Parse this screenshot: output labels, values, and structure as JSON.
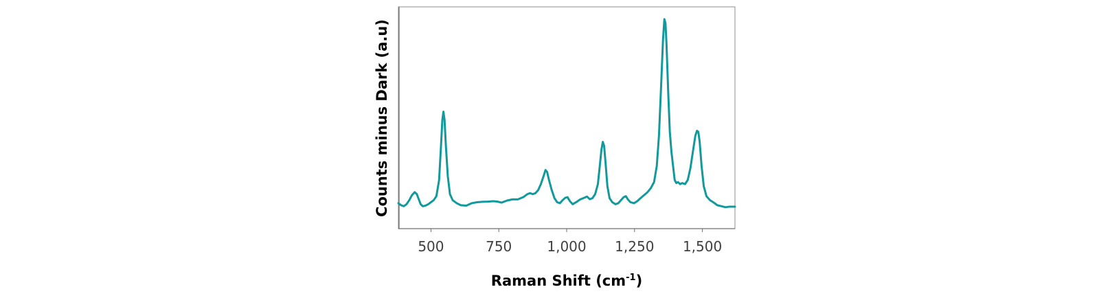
{
  "chart_data": {
    "type": "line",
    "xlabel": {
      "main": "Raman Shift (cm",
      "sup": "-1",
      "close": ")"
    },
    "ylabel": "Counts minus Dark (a.u)",
    "xlim": [
      380,
      1620
    ],
    "ylim": [
      0,
      100
    ],
    "x_ticks": [
      500,
      750,
      1000,
      1250,
      1500
    ],
    "x_tick_labels": [
      "500",
      "750",
      "1,000",
      "1,250",
      "1,500"
    ],
    "y_ticks_visible": false,
    "grid": false,
    "legend": "none",
    "series": [
      {
        "color": "#12999b",
        "points": [
          [
            380,
            6.5
          ],
          [
            390,
            5.5
          ],
          [
            400,
            5
          ],
          [
            410,
            6
          ],
          [
            420,
            8
          ],
          [
            430,
            10.5
          ],
          [
            440,
            12
          ],
          [
            448,
            11
          ],
          [
            455,
            8.5
          ],
          [
            462,
            6
          ],
          [
            470,
            5
          ],
          [
            480,
            5.3
          ],
          [
            490,
            6
          ],
          [
            500,
            7
          ],
          [
            510,
            8
          ],
          [
            520,
            10
          ],
          [
            530,
            18
          ],
          [
            537,
            35
          ],
          [
            542,
            48
          ],
          [
            546,
            52
          ],
          [
            550,
            48
          ],
          [
            555,
            35
          ],
          [
            562,
            20
          ],
          [
            570,
            11
          ],
          [
            580,
            8
          ],
          [
            595,
            6.5
          ],
          [
            610,
            5.5
          ],
          [
            630,
            5.3
          ],
          [
            650,
            6.5
          ],
          [
            670,
            7
          ],
          [
            690,
            7.2
          ],
          [
            710,
            7.3
          ],
          [
            730,
            7.5
          ],
          [
            745,
            7.3
          ],
          [
            760,
            6.8
          ],
          [
            780,
            7.8
          ],
          [
            800,
            8.4
          ],
          [
            820,
            8.4
          ],
          [
            840,
            9.5
          ],
          [
            855,
            11
          ],
          [
            865,
            11.5
          ],
          [
            875,
            11
          ],
          [
            885,
            11.5
          ],
          [
            895,
            13
          ],
          [
            905,
            16
          ],
          [
            915,
            20
          ],
          [
            922,
            23
          ],
          [
            928,
            22
          ],
          [
            935,
            18
          ],
          [
            945,
            13
          ],
          [
            955,
            9
          ],
          [
            965,
            7
          ],
          [
            975,
            6.5
          ],
          [
            985,
            8
          ],
          [
            995,
            9.2
          ],
          [
            1003,
            9.5
          ],
          [
            1012,
            7.5
          ],
          [
            1022,
            6
          ],
          [
            1035,
            7
          ],
          [
            1050,
            8.4
          ],
          [
            1065,
            9.2
          ],
          [
            1075,
            9.8
          ],
          [
            1085,
            8.5
          ],
          [
            1095,
            9
          ],
          [
            1105,
            11
          ],
          [
            1115,
            16
          ],
          [
            1122,
            25
          ],
          [
            1128,
            33
          ],
          [
            1133,
            37
          ],
          [
            1138,
            35
          ],
          [
            1143,
            27
          ],
          [
            1150,
            15
          ],
          [
            1158,
            9
          ],
          [
            1168,
            7
          ],
          [
            1180,
            6
          ],
          [
            1190,
            6.5
          ],
          [
            1200,
            8
          ],
          [
            1210,
            9.5
          ],
          [
            1218,
            10
          ],
          [
            1225,
            8.5
          ],
          [
            1235,
            7
          ],
          [
            1248,
            6.5
          ],
          [
            1260,
            7.5
          ],
          [
            1272,
            9
          ],
          [
            1285,
            10.5
          ],
          [
            1298,
            12
          ],
          [
            1310,
            14
          ],
          [
            1322,
            17
          ],
          [
            1332,
            25
          ],
          [
            1340,
            40
          ],
          [
            1348,
            65
          ],
          [
            1355,
            88
          ],
          [
            1360,
            98
          ],
          [
            1364,
            96
          ],
          [
            1368,
            85
          ],
          [
            1374,
            62
          ],
          [
            1380,
            42
          ],
          [
            1386,
            32
          ],
          [
            1392,
            25
          ],
          [
            1398,
            18
          ],
          [
            1404,
            16.5
          ],
          [
            1410,
            17
          ],
          [
            1418,
            16
          ],
          [
            1426,
            16.5
          ],
          [
            1436,
            16
          ],
          [
            1446,
            18
          ],
          [
            1456,
            24
          ],
          [
            1466,
            33
          ],
          [
            1474,
            40
          ],
          [
            1480,
            42.5
          ],
          [
            1485,
            42
          ],
          [
            1490,
            37
          ],
          [
            1497,
            25
          ],
          [
            1505,
            15
          ],
          [
            1515,
            10
          ],
          [
            1528,
            8
          ],
          [
            1540,
            7
          ],
          [
            1555,
            5.5
          ],
          [
            1570,
            5
          ],
          [
            1585,
            4.5
          ],
          [
            1600,
            4.8
          ],
          [
            1620,
            4.8
          ]
        ]
      }
    ]
  }
}
